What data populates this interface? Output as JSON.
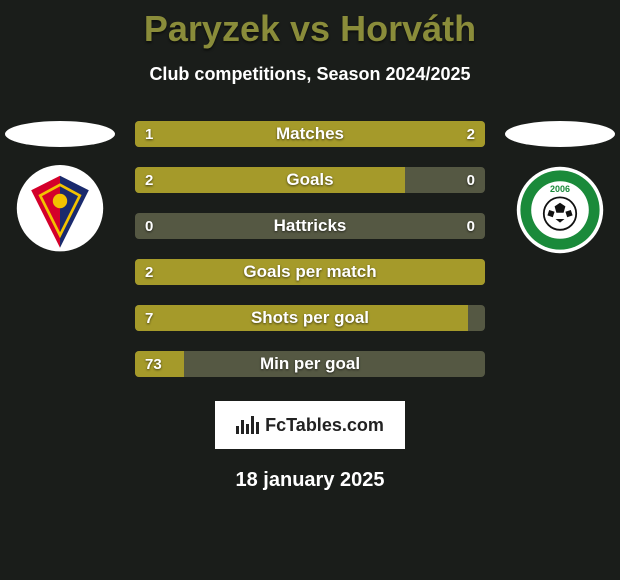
{
  "title_left": "Paryzek",
  "title_vs": "vs",
  "title_right": "Horváth",
  "subtitle": "Club competitions, Season 2024/2025",
  "brand": "FcTables.com",
  "date": "18 january 2025",
  "colors": {
    "title": "#8a8c3a",
    "left_fill": "#a59a2a",
    "right_fill": "#a59a2a",
    "bar_bg": "#555843",
    "text": "#ffffff",
    "background": "#1a1d1a"
  },
  "bars": [
    {
      "label": "Matches",
      "left": "1",
      "right": "2",
      "left_pct": 33,
      "right_pct": 67
    },
    {
      "label": "Goals",
      "left": "2",
      "right": "0",
      "left_pct": 77,
      "right_pct": 0
    },
    {
      "label": "Hattricks",
      "left": "0",
      "right": "0",
      "left_pct": 0,
      "right_pct": 0
    },
    {
      "label": "Goals per match",
      "left": "2",
      "right": "",
      "left_pct": 100,
      "right_pct": 0
    },
    {
      "label": "Shots per goal",
      "left": "7",
      "right": "",
      "left_pct": 95,
      "right_pct": 0
    },
    {
      "label": "Min per goal",
      "left": "73",
      "right": "",
      "left_pct": 14,
      "right_pct": 0
    }
  ],
  "logos": {
    "left": {
      "shape": "shield-triangle",
      "colors": {
        "outer": "#ffffff",
        "left": "#d4002a",
        "right": "#1a2a6d",
        "accent": "#f2c200"
      }
    },
    "right": {
      "shape": "round-badge",
      "colors": {
        "outer": "#ffffff",
        "ring": "#1a8a3a",
        "inner": "#ffffff",
        "ball": "#111111"
      },
      "year": "2006"
    }
  }
}
